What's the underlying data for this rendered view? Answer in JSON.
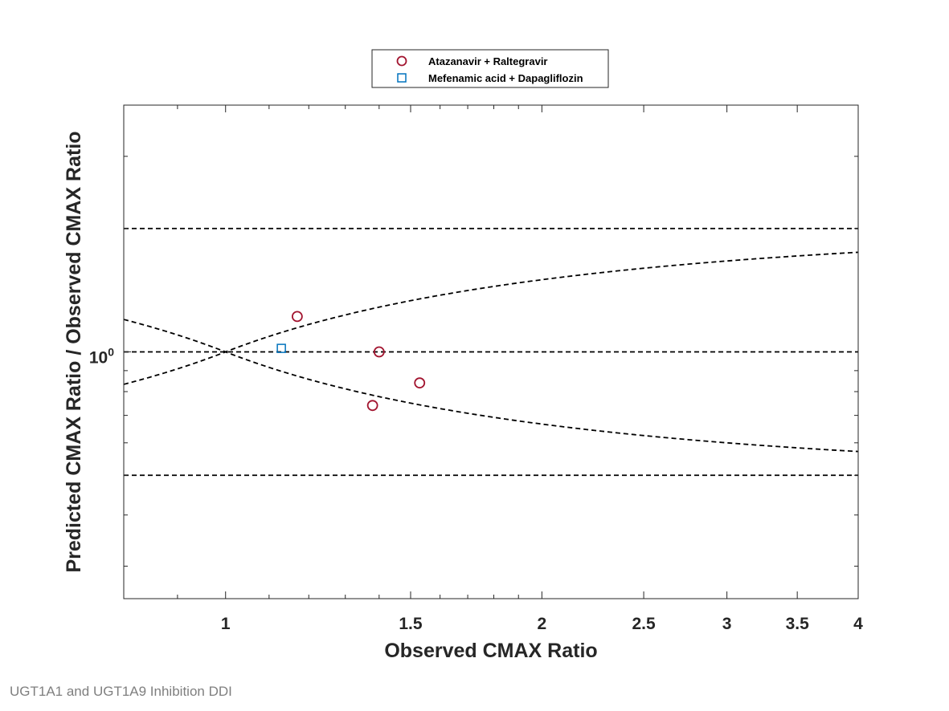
{
  "chart_data": {
    "type": "scatter",
    "xlabel": "Observed CMAX Ratio",
    "ylabel": "Predicted CMAX Ratio / Observed CMAX Ratio",
    "x_scale": "log",
    "y_scale": "log",
    "xlim": [
      0.8,
      4
    ],
    "ylim": [
      0.25,
      4
    ],
    "x_ticks": [
      1,
      1.5,
      2,
      2.5,
      3,
      3.5,
      4
    ],
    "x_tick_labels": [
      "1",
      "1.5",
      "2",
      "2.5",
      "3",
      "3.5",
      "4"
    ],
    "y_tick_label": {
      "base": "10",
      "exponent": "0"
    },
    "grid": false,
    "legend_position": "top-center, outside plot",
    "reference_lines": {
      "horizontal": [
        0.5,
        1,
        2
      ],
      "guest_limits": "dashed curves crossing at x = 1"
    },
    "series": [
      {
        "name": "Atazanavir + Raltegravir",
        "marker": "circle",
        "color": "#a2142f",
        "points": [
          [
            1.17,
            1.22
          ],
          [
            1.4,
            1.0
          ],
          [
            1.38,
            0.74
          ],
          [
            1.53,
            0.84
          ]
        ]
      },
      {
        "name": "Mefenamic acid + Dapagliflozin",
        "marker": "square",
        "color": "#0072bd",
        "points": [
          [
            1.13,
            1.02
          ]
        ]
      }
    ]
  },
  "footer_text": "UGT1A1 and UGT1A9 Inhibition DDI"
}
